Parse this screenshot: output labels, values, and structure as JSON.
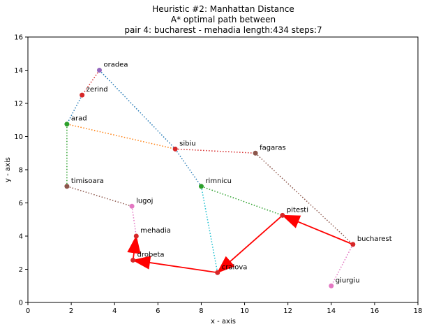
{
  "chart_data": {
    "type": "scatter",
    "title_lines": [
      "Heuristic #2: Manhattan Distance",
      "A* optimal path between",
      "pair 4: bucharest - mehadia length:434 steps:7"
    ],
    "xlabel": "x - axis",
    "ylabel": "y - axis",
    "xlim": [
      0,
      18
    ],
    "ylim": [
      0,
      16
    ],
    "x_ticks": [
      0,
      2,
      4,
      6,
      8,
      10,
      12,
      14,
      16,
      18
    ],
    "y_ticks": [
      0,
      2,
      4,
      6,
      8,
      10,
      12,
      14,
      16
    ],
    "grid": false,
    "cities": [
      {
        "name": "oradea",
        "x": 3.3,
        "y": 14.0,
        "color": "#9467bd"
      },
      {
        "name": "zerind",
        "x": 2.5,
        "y": 12.5,
        "color": "#d62728"
      },
      {
        "name": "arad",
        "x": 1.8,
        "y": 10.75,
        "color": "#2ca02c"
      },
      {
        "name": "sibiu",
        "x": 6.8,
        "y": 9.25,
        "color": "#d62728"
      },
      {
        "name": "fagaras",
        "x": 10.5,
        "y": 9.0,
        "color": "#8c564b"
      },
      {
        "name": "timisoara",
        "x": 1.8,
        "y": 7.0,
        "color": "#8c564b"
      },
      {
        "name": "rimnicu",
        "x": 8.0,
        "y": 7.0,
        "color": "#2ca02c"
      },
      {
        "name": "lugoj",
        "x": 4.8,
        "y": 5.8,
        "color": "#e377c2"
      },
      {
        "name": "pitesti",
        "x": 11.75,
        "y": 5.25,
        "color": "#d62728"
      },
      {
        "name": "mehadia",
        "x": 5.0,
        "y": 4.0,
        "color": "#d62728"
      },
      {
        "name": "bucharest",
        "x": 15.0,
        "y": 3.5,
        "color": "#d62728"
      },
      {
        "name": "drobeta",
        "x": 4.85,
        "y": 2.55,
        "color": "#d62728"
      },
      {
        "name": "craiova",
        "x": 8.75,
        "y": 1.8,
        "color": "#d62728"
      },
      {
        "name": "giurgiu",
        "x": 14.0,
        "y": 1.0,
        "color": "#e377c2"
      }
    ],
    "roads": [
      {
        "from": "oradea",
        "to": "zerind",
        "color": "#d62728"
      },
      {
        "from": "oradea",
        "to": "sibiu",
        "color": "#1f77b4"
      },
      {
        "from": "zerind",
        "to": "arad",
        "color": "#1f77b4"
      },
      {
        "from": "arad",
        "to": "sibiu",
        "color": "#ff7f0e"
      },
      {
        "from": "arad",
        "to": "timisoara",
        "color": "#2ca02c"
      },
      {
        "from": "sibiu",
        "to": "fagaras",
        "color": "#d62728"
      },
      {
        "from": "sibiu",
        "to": "rimnicu",
        "color": "#1f77b4"
      },
      {
        "from": "fagaras",
        "to": "bucharest",
        "color": "#8c564b"
      },
      {
        "from": "timisoara",
        "to": "lugoj",
        "color": "#8c564b"
      },
      {
        "from": "lugoj",
        "to": "mehadia",
        "color": "#e377c2"
      },
      {
        "from": "rimnicu",
        "to": "pitesti",
        "color": "#2ca02c"
      },
      {
        "from": "rimnicu",
        "to": "craiova",
        "color": "#17becf"
      },
      {
        "from": "bucharest",
        "to": "giurgiu",
        "color": "#e377c2"
      }
    ],
    "path": [
      "bucharest",
      "pitesti",
      "craiova",
      "drobeta",
      "mehadia"
    ],
    "path_color": "#ff0000"
  }
}
